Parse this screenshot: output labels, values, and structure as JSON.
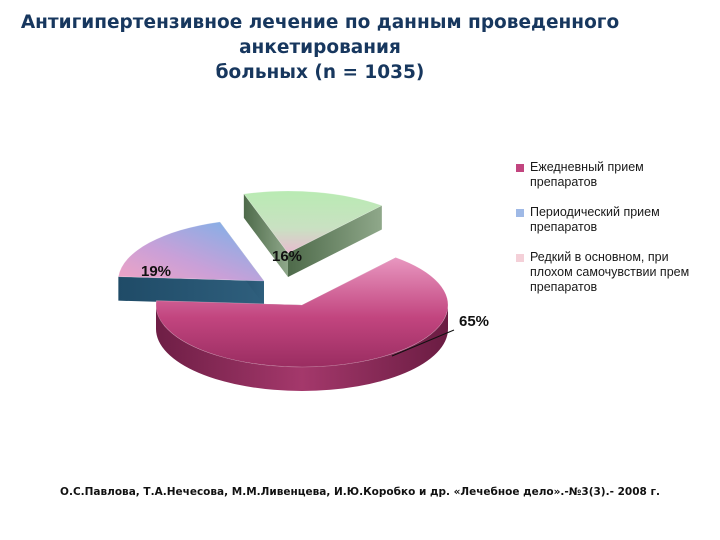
{
  "slide": {
    "title_lines": [
      "Антигипертензивное лечение по данным проведенного",
      "анкетирования",
      "больных (n = 1035)"
    ],
    "source": "О.С.Павлова, Т.А.Нечесова, М.М.Ливенцева, И.Ю.Коробко и др. «Лечебное дело».-№3(3).- 2008 г."
  },
  "chart_data": {
    "type": "pie",
    "style": "3d-exploded",
    "title": "",
    "categories": [
      "Ежедневный прием препаратов",
      "Периодический прием препаратов",
      "Редкий в основном, при плохом самочувствии прем препаратов"
    ],
    "values": [
      65,
      19,
      16
    ],
    "value_labels": [
      "65%",
      "19%",
      "16%"
    ],
    "legend": {
      "placement": "right",
      "entries": [
        "Ежедневный прием\nпрепаратов",
        "Периодический прием\nпрепаратов",
        "Редкий в основном, при\nплохом самочувствии прем\nпрепаратов"
      ]
    },
    "colors": [
      "#c2457f",
      "#8fb4e3",
      "#a9e0a4"
    ],
    "legend_colors": [
      "#c2457f",
      "#9fb9e6",
      "#f4d0d8"
    ]
  }
}
